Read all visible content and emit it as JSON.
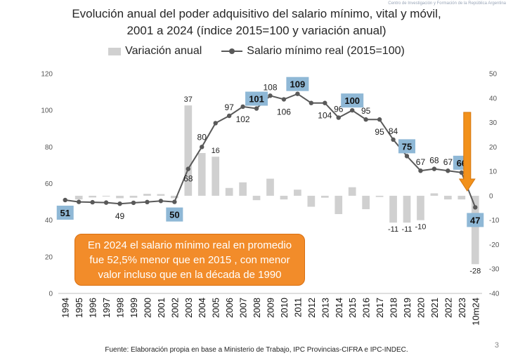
{
  "header": {
    "title_line1": "Evolución anual del poder adquisitivo del salario mínimo, vital y móvil,",
    "title_line2": "2001 a 2024 (índice 2015=100 y variación anual)",
    "watermark": "Centro de Investigación y Formación de la República Argentina"
  },
  "callout": {
    "text": "En 2024 el salario mínimo real en promedio fue 52,5% menor que en 2015 , con menor valor incluso que en la década de 1990"
  },
  "footer": {
    "source": "Fuente: Elaboración propia en base a Ministerio de Trabajo, IPC Provincias-CIFRA e IPC-INDEC.",
    "page_number": "3"
  },
  "colors": {
    "bar": "#d0d0d0",
    "line": "#595959",
    "highlight_box": "#8fb8d6",
    "callout": "#f28c2a",
    "arrow": "#f2911b"
  },
  "chart_data": {
    "type": "bar+line",
    "categories": [
      "1994",
      "1995",
      "1996",
      "1997",
      "1998",
      "1999",
      "2000",
      "2001",
      "2002",
      "2003",
      "2004",
      "2005",
      "2006",
      "2007",
      "2008",
      "2009",
      "2010",
      "2011",
      "2012",
      "2013",
      "2014",
      "2015",
      "2016",
      "2017",
      "2018",
      "2019",
      "2020",
      "2021",
      "2022",
      "2023",
      "10m24"
    ],
    "legend": [
      "Variación anual",
      "Salario mínimo real (2015=100)"
    ],
    "legend_position": "top",
    "series": [
      {
        "name": "Variación anual",
        "type": "bar",
        "axis": "right",
        "values": [
          0,
          -1.5,
          -0.7,
          -0.3,
          -1,
          -0.8,
          0.8,
          0.7,
          -1,
          37,
          17.5,
          16,
          3.2,
          5.5,
          -1.8,
          7,
          -1.5,
          2.5,
          -4.5,
          -0.8,
          -7.5,
          3.5,
          -5.5,
          -0.5,
          -11,
          -11,
          -10,
          1,
          -1.5,
          -1.5,
          -28
        ]
      },
      {
        "name": "Salario mínimo real (2015=100)",
        "type": "line",
        "axis": "left",
        "values": [
          51,
          50,
          49.8,
          49.6,
          49,
          49.5,
          49.9,
          50.5,
          50,
          68,
          80,
          93,
          97,
          102,
          101,
          108,
          106,
          109,
          104,
          104,
          96,
          100,
          95,
          95,
          84,
          75,
          67,
          68,
          67,
          66,
          47
        ]
      }
    ],
    "bar_labels": [
      {
        "category": "2003",
        "text": "37"
      },
      {
        "category": "2005",
        "text": "16"
      },
      {
        "category": "2018",
        "text": "-11"
      },
      {
        "category": "2019",
        "text": "-11"
      },
      {
        "category": "2020",
        "text": "-10"
      },
      {
        "category": "10m24",
        "text": "-28"
      }
    ],
    "line_labels": [
      {
        "category": "1994",
        "text": "51",
        "boxed": true
      },
      {
        "category": "1998",
        "text": "49",
        "boxed": false
      },
      {
        "category": "2002",
        "text": "50",
        "boxed": true
      },
      {
        "category": "2003",
        "text": "68",
        "boxed": false
      },
      {
        "category": "2004",
        "text": "80",
        "boxed": false
      },
      {
        "category": "2006",
        "text": "97",
        "boxed": false
      },
      {
        "category": "2007",
        "text": "102",
        "boxed": false
      },
      {
        "category": "2008",
        "text": "101",
        "boxed": true
      },
      {
        "category": "2009",
        "text": "108",
        "boxed": false
      },
      {
        "category": "2010",
        "text": "106",
        "boxed": false
      },
      {
        "category": "2011",
        "text": "109",
        "boxed": true
      },
      {
        "category": "2013",
        "text": "104",
        "boxed": false
      },
      {
        "category": "2014",
        "text": "96",
        "boxed": false
      },
      {
        "category": "2015",
        "text": "100",
        "boxed": true
      },
      {
        "category": "2016",
        "text": "95",
        "boxed": false
      },
      {
        "category": "2017",
        "text": "95",
        "boxed": false
      },
      {
        "category": "2018",
        "text": "84",
        "boxed": false
      },
      {
        "category": "2019",
        "text": "75",
        "boxed": true
      },
      {
        "category": "2020",
        "text": "67",
        "boxed": false
      },
      {
        "category": "2021",
        "text": "68",
        "boxed": false
      },
      {
        "category": "2022",
        "text": "67",
        "boxed": false
      },
      {
        "category": "2023",
        "text": "66",
        "boxed": true
      },
      {
        "category": "10m24",
        "text": "47",
        "boxed": true
      }
    ],
    "y_left": {
      "min": 0,
      "max": 120,
      "ticks": [
        0,
        20,
        40,
        60,
        80,
        100,
        120
      ]
    },
    "y_right": {
      "min": -40,
      "max": 50,
      "ticks": [
        -40,
        -30,
        -20,
        -10,
        0,
        10,
        20,
        30,
        40,
        50
      ]
    },
    "grid": false
  }
}
